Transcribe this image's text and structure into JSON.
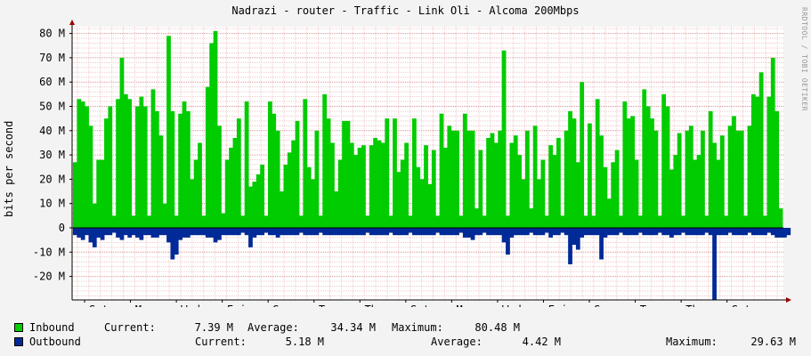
{
  "chart_data": {
    "type": "area",
    "title": "Nadrazi - router - Traffic - Link Oli - Alcoma 200Mbps",
    "ylabel": "bits per second",
    "watermark": "RRDTOOL / TOBI OETIKER",
    "y_ticks": [
      {
        "v": 80,
        "label": "80 M"
      },
      {
        "v": 70,
        "label": "70 M"
      },
      {
        "v": 60,
        "label": "60 M"
      },
      {
        "v": 50,
        "label": "50 M"
      },
      {
        "v": 40,
        "label": "40 M"
      },
      {
        "v": 30,
        "label": "30 M"
      },
      {
        "v": 20,
        "label": "20 M"
      },
      {
        "v": 10,
        "label": "10 M"
      },
      {
        "v": 0,
        "label": "0"
      },
      {
        "v": -10,
        "label": "-10 M"
      },
      {
        "v": -20,
        "label": "-20 M"
      }
    ],
    "ylim": [
      -30,
      83
    ],
    "x_ticks": [
      "Sat",
      "Mon",
      "Wed",
      "Fri",
      "Sun",
      "Tue",
      "Thu",
      "Sat",
      "Mon",
      "Wed",
      "Fri",
      "Sun",
      "Tue",
      "Thu",
      "Sat"
    ],
    "grid": true,
    "colors": {
      "inbound": "#00cc00",
      "outbound": "#002a97",
      "major_grid": "#e09090",
      "minor_grid": "#f0c8c8",
      "axis": "#000000",
      "arrow": "#990000"
    },
    "series": [
      {
        "name": "Inbound",
        "values": [
          27,
          53,
          52,
          50,
          42,
          10,
          28,
          28,
          45,
          50,
          5,
          53,
          70,
          55,
          53,
          5,
          50,
          54,
          50,
          5,
          57,
          48,
          38,
          10,
          79,
          48,
          5,
          47,
          52,
          48,
          20,
          28,
          35,
          5,
          58,
          76,
          81,
          42,
          6,
          28,
          33,
          37,
          45,
          5,
          52,
          17,
          19,
          22,
          26,
          5,
          52,
          47,
          40,
          15,
          26,
          31,
          36,
          44,
          5,
          53,
          25,
          20,
          40,
          5,
          55,
          45,
          35,
          15,
          28,
          44,
          44,
          35,
          30,
          33,
          34,
          5,
          34,
          37,
          36,
          35,
          45,
          5,
          45,
          23,
          28,
          35,
          5,
          45,
          25,
          20,
          34,
          18,
          32,
          5,
          47,
          33,
          42,
          40,
          40,
          5,
          47,
          40,
          40,
          8,
          32,
          5,
          37,
          39,
          35,
          40,
          73,
          5,
          35,
          38,
          30,
          20,
          40,
          8,
          42,
          20,
          28,
          5,
          34,
          30,
          37,
          5,
          40,
          48,
          45,
          27,
          60,
          5,
          43,
          5,
          53,
          38,
          25,
          12,
          27,
          32,
          5,
          52,
          45,
          46,
          28,
          5,
          57,
          50,
          45,
          40,
          5,
          55,
          50,
          24,
          30,
          39,
          5,
          40,
          42,
          28,
          30,
          40,
          5,
          48,
          35,
          28,
          38,
          5,
          42,
          46,
          40,
          40,
          5,
          42,
          55,
          54,
          64,
          5,
          54,
          70,
          48,
          8
        ]
      },
      {
        "name": "Outbound",
        "values": [
          -3,
          -4,
          -5,
          -3,
          -6,
          -8,
          -4,
          -5,
          -3,
          -3,
          -2,
          -4,
          -5,
          -3,
          -4,
          -3,
          -4,
          -5,
          -3,
          -3,
          -4,
          -4,
          -3,
          -3,
          -6,
          -13,
          -11,
          -5,
          -4,
          -4,
          -3,
          -3,
          -3,
          -3,
          -4,
          -4,
          -6,
          -5,
          -3,
          -3,
          -3,
          -3,
          -3,
          -2,
          -3,
          -8,
          -4,
          -3,
          -3,
          -2,
          -3,
          -3,
          -4,
          -3,
          -3,
          -3,
          -3,
          -3,
          -2,
          -3,
          -3,
          -3,
          -3,
          -2,
          -3,
          -3,
          -3,
          -3,
          -3,
          -3,
          -3,
          -3,
          -3,
          -3,
          -3,
          -2,
          -3,
          -3,
          -3,
          -3,
          -3,
          -2,
          -3,
          -3,
          -3,
          -3,
          -2,
          -3,
          -3,
          -3,
          -3,
          -3,
          -3,
          -2,
          -3,
          -3,
          -3,
          -3,
          -3,
          -2,
          -4,
          -4,
          -5,
          -3,
          -3,
          -2,
          -3,
          -3,
          -3,
          -3,
          -6,
          -11,
          -4,
          -3,
          -3,
          -3,
          -3,
          -2,
          -3,
          -3,
          -3,
          -2,
          -4,
          -3,
          -3,
          -2,
          -3,
          -15,
          -7,
          -9,
          -4,
          -3,
          -3,
          -3,
          -3,
          -13,
          -4,
          -3,
          -3,
          -3,
          -2,
          -3,
          -3,
          -3,
          -3,
          -2,
          -3,
          -3,
          -3,
          -3,
          -2,
          -3,
          -3,
          -4,
          -3,
          -3,
          -2,
          -3,
          -3,
          -3,
          -3,
          -3,
          -2,
          -3,
          -30,
          -3,
          -3,
          -3,
          -2,
          -3,
          -3,
          -3,
          -3,
          -2,
          -3,
          -3,
          -3,
          -3,
          -2,
          -3,
          -4,
          -4,
          -4,
          -3
        ]
      }
    ]
  },
  "legend": {
    "inbound": {
      "name": "Inbound",
      "current_label": "Current:",
      "current": "7.39 M",
      "average_label": "Average:",
      "average": "34.34 M",
      "maximum_label": "Maximum:",
      "maximum": "80.48 M"
    },
    "outbound": {
      "name": "Outbound",
      "current_label": "Current:",
      "current": "5.18 M",
      "average_label": "Average:",
      "average": "4.42 M",
      "maximum_label": "Maximum:",
      "maximum": "29.63 M"
    }
  }
}
